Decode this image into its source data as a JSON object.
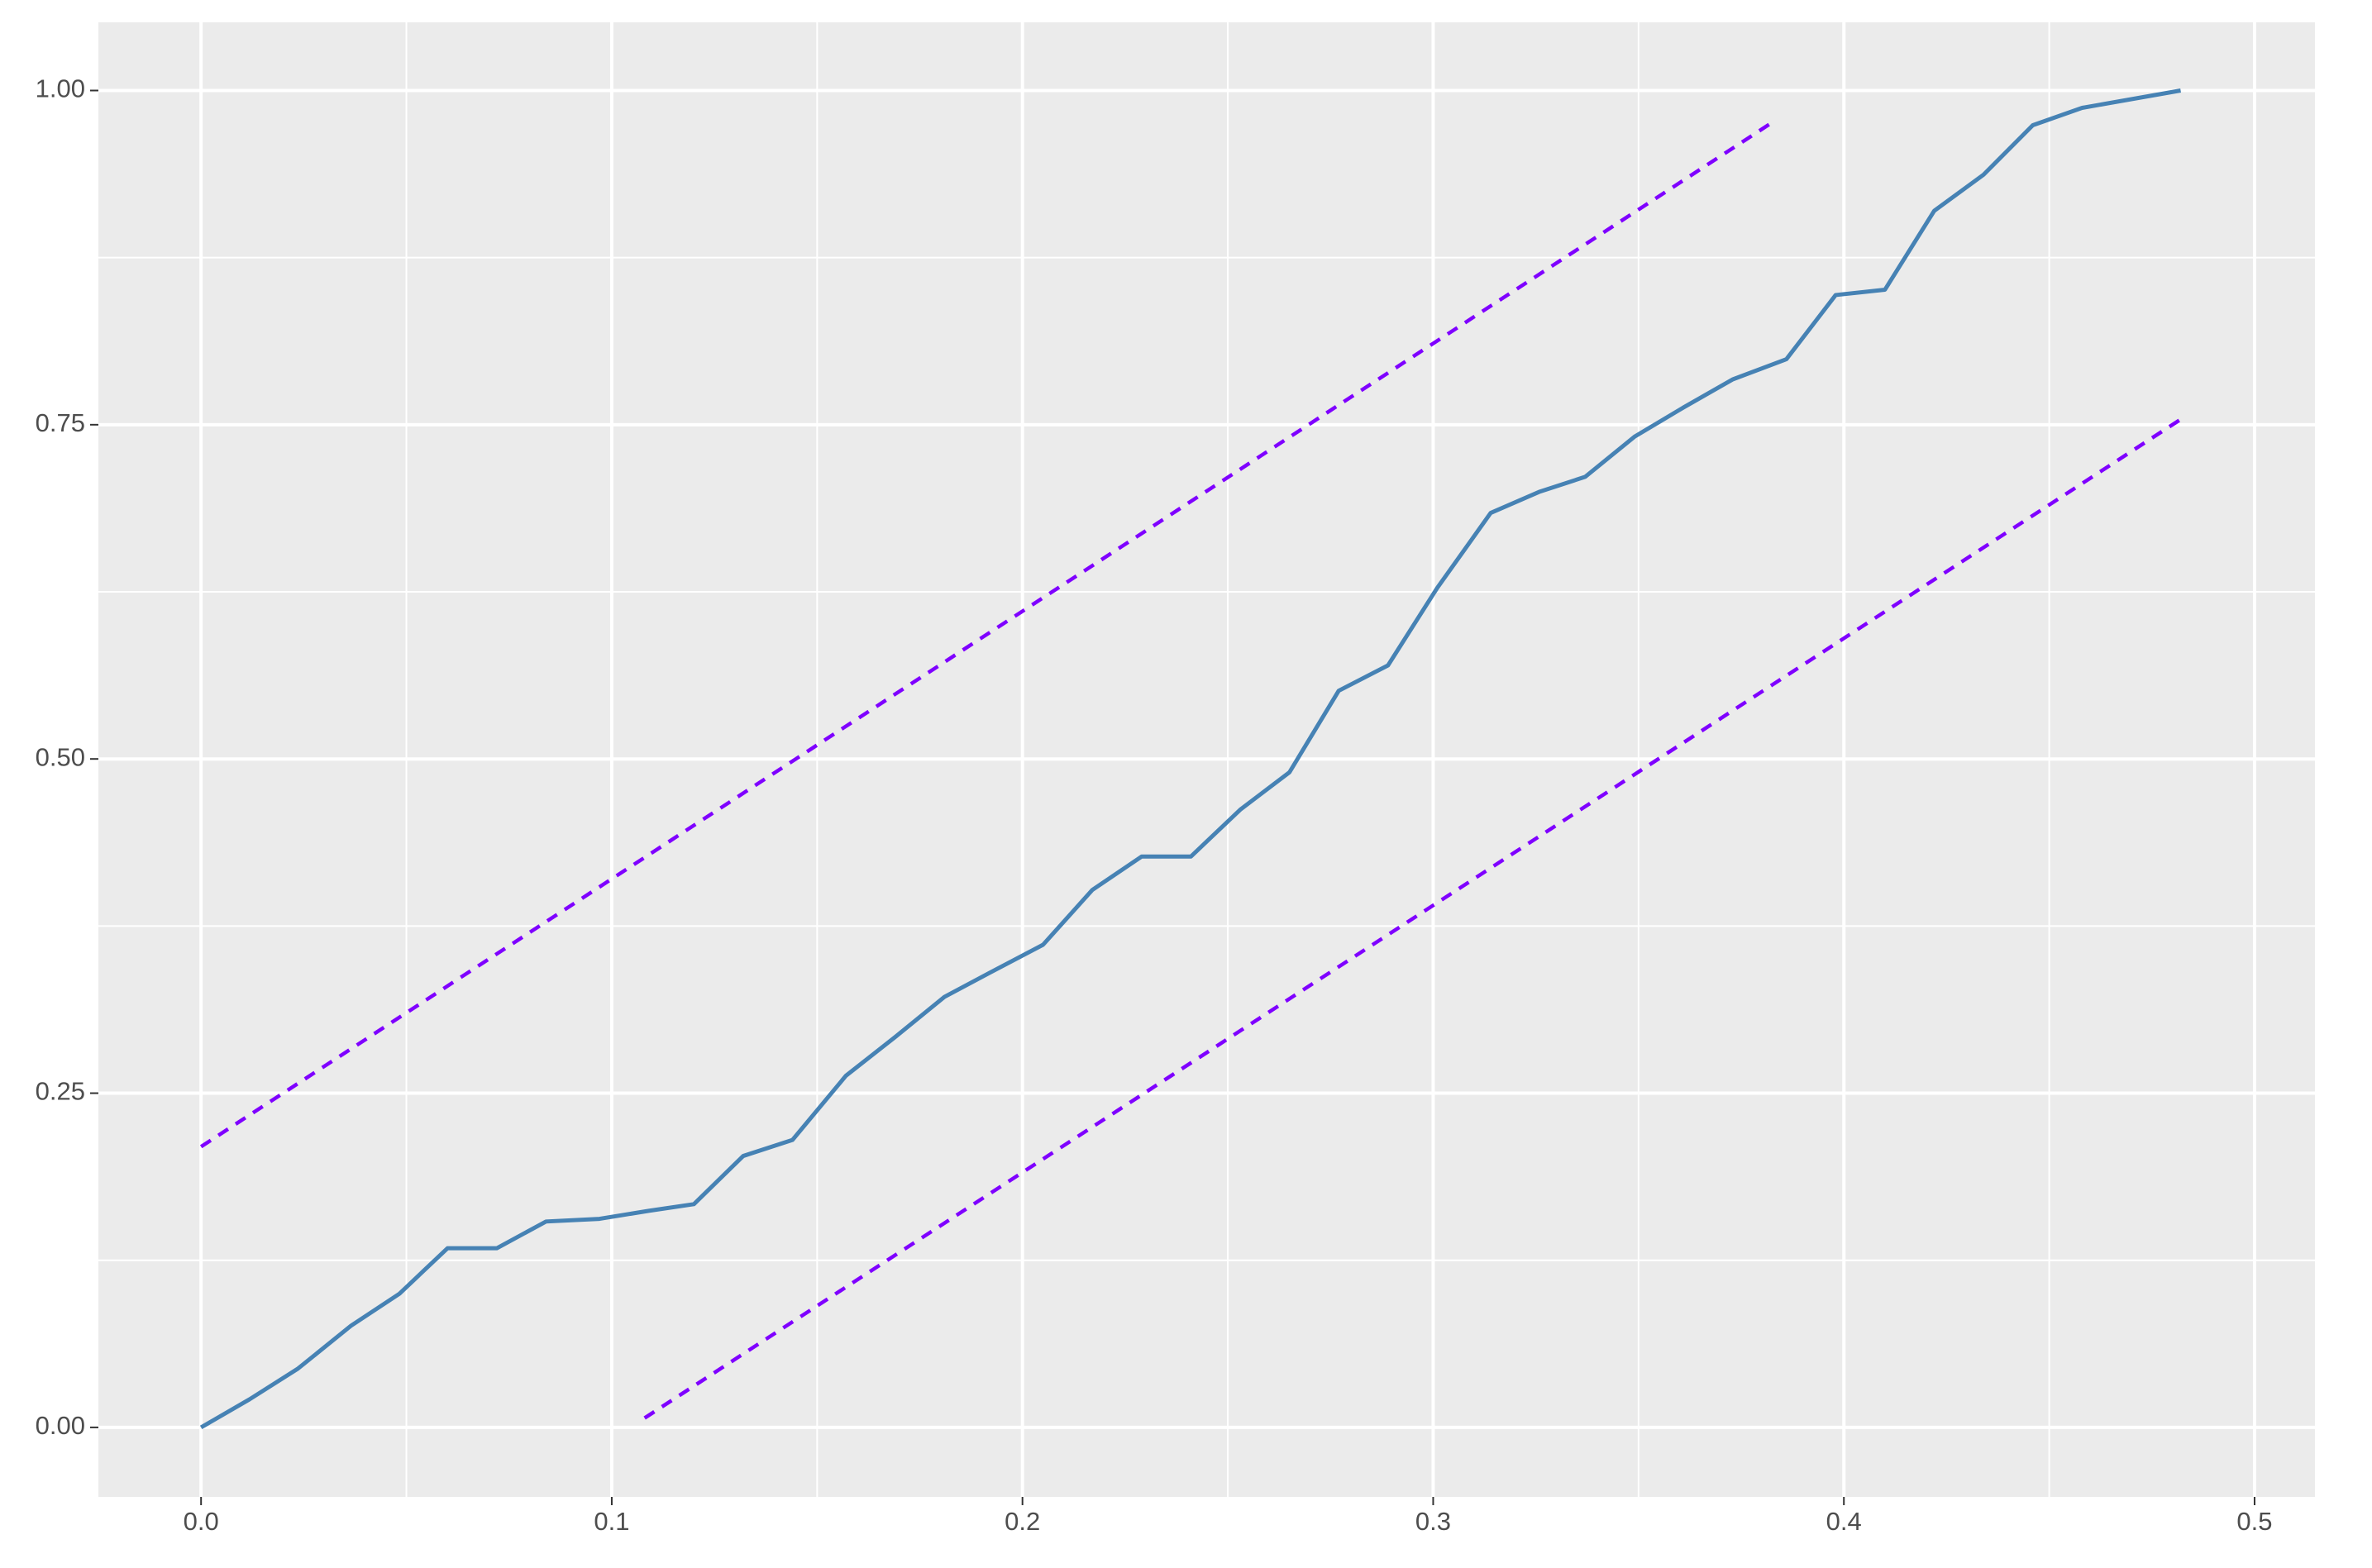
{
  "chart_data": {
    "type": "line",
    "series": [
      {
        "color": "#4682b4",
        "dash": false,
        "x": [
          0,
          0.0118,
          0.0236,
          0.0365,
          0.0483,
          0.06,
          0.072,
          0.084,
          0.097,
          0.109,
          0.12,
          0.132,
          0.144,
          0.157,
          0.169,
          0.181,
          0.192,
          0.205,
          0.217,
          0.229,
          0.241,
          0.253,
          0.265,
          0.277,
          0.289,
          0.301,
          0.314,
          0.326,
          0.337,
          0.349,
          0.361,
          0.373,
          0.386,
          0.398,
          0.41,
          0.422,
          0.434,
          0.446,
          0.458,
          0.482
        ],
        "values": [
          0,
          0.021,
          0.044,
          0.076,
          0.1,
          0.134,
          0.134,
          0.154,
          0.156,
          0.162,
          0.167,
          0.203,
          0.215,
          0.263,
          0.292,
          0.322,
          0.34,
          0.361,
          0.402,
          0.427,
          0.427,
          0.462,
          0.49,
          0.551,
          0.57,
          0.628,
          0.684,
          0.7,
          0.711,
          0.741,
          0.763,
          0.784,
          0.799,
          0.847,
          0.851,
          0.91,
          0.937,
          0.974,
          0.987,
          1.0
        ]
      },
      {
        "color": "#7f00ff",
        "dash": true,
        "x": [
          0,
          0.383
        ],
        "values": [
          0.21,
          0.977
        ]
      },
      {
        "color": "#7f00ff",
        "dash": true,
        "x": [
          0.108,
          0.482
        ],
        "values": [
          0.007,
          0.754
        ]
      }
    ],
    "xlim": [
      -0.025,
      0.5147
    ],
    "ylim": [
      -0.052,
      1.051
    ],
    "xticks": [
      {
        "value": 0,
        "label": "0.0"
      },
      0.1,
      0.2,
      0.3,
      0.4,
      0.5
    ],
    "yticks": [
      {
        "value": 0,
        "label": "0.00"
      },
      {
        "value": 0.25,
        "label": "0.25"
      },
      {
        "value": 0.5,
        "label": "0.50"
      },
      {
        "value": 0.75,
        "label": "0.75"
      },
      {
        "value": 1,
        "label": "1.00"
      }
    ],
    "x_minor_grid": [
      0.05,
      0.15,
      0.25,
      0.35,
      0.45
    ],
    "y_minor_grid": [
      0.125,
      0.375,
      0.625,
      0.875
    ],
    "grid": true
  }
}
